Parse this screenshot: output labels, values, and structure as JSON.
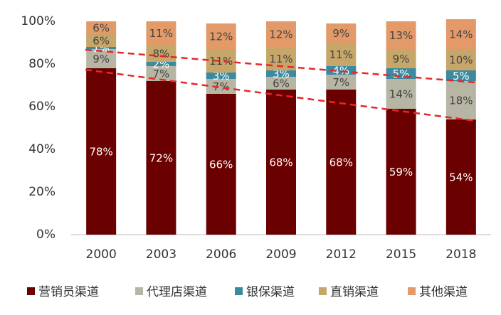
{
  "chart_data": {
    "type": "stacked_bar",
    "categories": [
      "2000",
      "2003",
      "2006",
      "2009",
      "2012",
      "2015",
      "2018"
    ],
    "series": [
      {
        "name": "营销员渠道",
        "color": "#6b0000",
        "values": [
          78,
          72,
          66,
          68,
          68,
          59,
          54
        ],
        "value_labels": [
          "78%",
          "72%",
          "66%",
          "68%",
          "68%",
          "59%",
          "54%"
        ]
      },
      {
        "name": "代理店渠道",
        "color": "#b7b5a3",
        "values": [
          9,
          7,
          7,
          6,
          7,
          14,
          18
        ],
        "value_labels": [
          "9%",
          "7%",
          "7%",
          "6%",
          "7%",
          "14%",
          "18%"
        ]
      },
      {
        "name": "银保渠道",
        "color": "#3a8aa0",
        "values": [
          1,
          2,
          3,
          3,
          4,
          5,
          5
        ],
        "value_labels": [
          "1%",
          "2%",
          "3%",
          "3%",
          "4%",
          "5%",
          "5%"
        ]
      },
      {
        "name": "直销渠道",
        "color": "#c7a66a",
        "values": [
          6,
          8,
          11,
          11,
          11,
          9,
          10
        ],
        "value_labels": [
          "6%",
          "8%",
          "11%",
          "11%",
          "11%",
          "9%",
          "10%"
        ]
      },
      {
        "name": "其他渠道",
        "color": "#e49a68",
        "values": [
          6,
          11,
          12,
          12,
          9,
          13,
          14
        ],
        "value_labels": [
          "6%",
          "11%",
          "12%",
          "12%",
          "9%",
          "13%",
          "14%"
        ]
      }
    ],
    "ylim": [
      0,
      100
    ],
    "yticks": [
      {
        "value": 0,
        "label": "0%"
      },
      {
        "value": 20,
        "label": "20%"
      },
      {
        "value": 40,
        "label": "40%"
      },
      {
        "value": 60,
        "label": "60%"
      },
      {
        "value": 80,
        "label": "80%"
      },
      {
        "value": 100,
        "label": "100%"
      }
    ]
  }
}
